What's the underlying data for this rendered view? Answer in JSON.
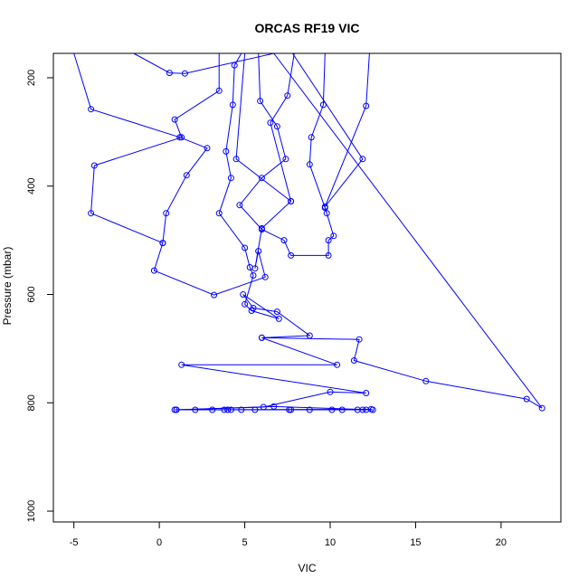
{
  "chart_data": {
    "type": "line",
    "title": "ORCAS RF19 VIC",
    "xlabel": "VIC",
    "ylabel": "Pressure (mbar)",
    "xlim": [
      -6.2,
      23.5
    ],
    "ylim": [
      1020,
      155
    ],
    "y_reversed": true,
    "grid": false,
    "legend": "none",
    "x_ticks": [
      -5,
      0,
      5,
      10,
      15,
      20
    ],
    "y_ticks": [
      200,
      400,
      600,
      800,
      1000
    ],
    "series": [
      {
        "color": "#0000ff",
        "marker": "open-circle",
        "points": [
          [
            4.8,
            150
          ],
          [
            4.4,
            177
          ],
          [
            4.3,
            250
          ],
          [
            3.9,
            336
          ],
          [
            4.2,
            385
          ],
          [
            3.5,
            450
          ],
          [
            5.0,
            514
          ],
          [
            5.3,
            550
          ],
          [
            5.5,
            565
          ],
          [
            5.0,
            618
          ],
          [
            5.4,
            630
          ],
          [
            7.0,
            645
          ],
          [
            4.9,
            600
          ],
          [
            5.5,
            625
          ],
          [
            6.9,
            632
          ],
          [
            8.8,
            676
          ],
          [
            6.0,
            680
          ],
          [
            11.7,
            683
          ],
          [
            11.4,
            722
          ],
          [
            15.6,
            760
          ],
          [
            21.5,
            793
          ],
          [
            22.4,
            810
          ],
          [
            6.7,
            151
          ],
          [
            1.5,
            192
          ],
          [
            0.6,
            191
          ],
          [
            -1.5,
            150
          ]
        ]
      },
      {
        "color": "#0000ff",
        "marker": "open-circle",
        "points": [
          [
            -5.0,
            150
          ],
          [
            -4.0,
            258
          ],
          [
            1.2,
            310
          ],
          [
            2.8,
            330
          ],
          [
            1.6,
            380
          ],
          [
            0.4,
            450
          ],
          [
            0.2,
            505
          ],
          [
            -0.3,
            556
          ],
          [
            3.2,
            601
          ],
          [
            6.2,
            568
          ],
          [
            5.8,
            520
          ],
          [
            5.6,
            552
          ],
          [
            6.0,
            478
          ],
          [
            7.7,
            428
          ],
          [
            6.5,
            283
          ],
          [
            7.5,
            233
          ],
          [
            7.9,
            150
          ]
        ]
      },
      {
        "color": "#0000ff",
        "marker": "open-circle",
        "points": [
          [
            3.5,
            150
          ],
          [
            3.5,
            224
          ],
          [
            0.9,
            277
          ],
          [
            1.3,
            310
          ],
          [
            -3.8,
            362
          ],
          [
            -4.0,
            450
          ],
          [
            0.2,
            505
          ]
        ]
      },
      {
        "color": "#0000ff",
        "marker": "open-circle",
        "points": [
          [
            9.7,
            150
          ],
          [
            9.6,
            250
          ],
          [
            8.9,
            310
          ],
          [
            8.8,
            360
          ],
          [
            9.7,
            440
          ],
          [
            9.8,
            450
          ],
          [
            10.2,
            492
          ],
          [
            9.9,
            500
          ],
          [
            9.9,
            528
          ],
          [
            7.7,
            528
          ],
          [
            7.3,
            500
          ],
          [
            6.0,
            480
          ],
          [
            4.7,
            435
          ],
          [
            6.0,
            385
          ],
          [
            7.4,
            350
          ],
          [
            6.9,
            290
          ],
          [
            5.9,
            243
          ],
          [
            5.8,
            150
          ]
        ]
      },
      {
        "color": "#0000ff",
        "marker": "open-circle",
        "points": [
          [
            12.3,
            150
          ],
          [
            12.1,
            252
          ],
          [
            9.7,
            438
          ],
          [
            11.9,
            350
          ],
          [
            7.8,
            150
          ]
        ]
      },
      {
        "color": "#0000ff",
        "marker": "open-circle",
        "points": [
          [
            5.0,
            150
          ],
          [
            4.5,
            350
          ],
          [
            7.7,
            428
          ]
        ]
      },
      {
        "color": "#0000ff",
        "marker": "open-circle",
        "points": [
          [
            6.0,
            680
          ],
          [
            10.4,
            730
          ],
          [
            1.3,
            730
          ],
          [
            12.1,
            782
          ],
          [
            10.0,
            780
          ],
          [
            6.1,
            808
          ],
          [
            1.0,
            813
          ],
          [
            12.4,
            812
          ]
        ]
      },
      {
        "color": "#0000ff",
        "marker": "open-circle",
        "points": [
          [
            1.0,
            813
          ],
          [
            2.1,
            813
          ],
          [
            3.1,
            813
          ],
          [
            3.8,
            813
          ],
          [
            4.0,
            813
          ],
          [
            4.2,
            813
          ],
          [
            4.8,
            813
          ],
          [
            5.6,
            813
          ],
          [
            7.6,
            813
          ],
          [
            7.7,
            813
          ],
          [
            8.8,
            813
          ],
          [
            10.1,
            813
          ],
          [
            10.7,
            813
          ],
          [
            11.6,
            813
          ],
          [
            11.9,
            813
          ],
          [
            12.1,
            813
          ],
          [
            12.5,
            813
          ],
          [
            6.7,
            807
          ],
          [
            0.9,
            813
          ]
        ]
      }
    ]
  }
}
